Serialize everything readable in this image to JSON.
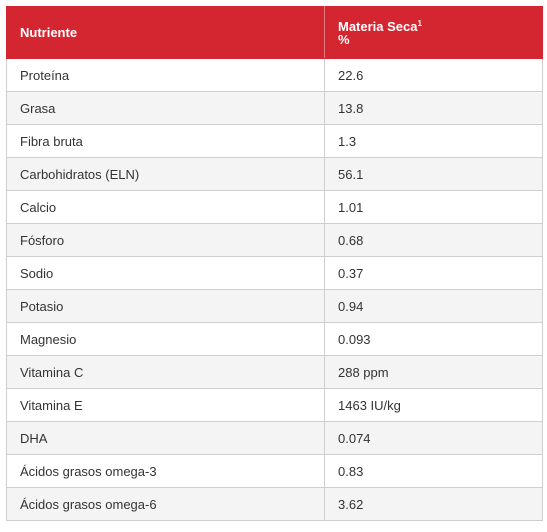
{
  "table": {
    "headers": {
      "nutrient": "Nutriente",
      "dry_matter": "Materia Seca",
      "dry_matter_sup": "1",
      "dry_matter_unit": "%"
    },
    "rows": [
      {
        "nutrient": "Proteína",
        "value": "22.6"
      },
      {
        "nutrient": "Grasa",
        "value": "13.8"
      },
      {
        "nutrient": "Fibra bruta",
        "value": "1.3"
      },
      {
        "nutrient": "Carbohidratos (ELN)",
        "value": "56.1"
      },
      {
        "nutrient": "Calcio",
        "value": "1.01"
      },
      {
        "nutrient": "Fósforo",
        "value": "0.68"
      },
      {
        "nutrient": "Sodio",
        "value": "0.37"
      },
      {
        "nutrient": "Potasio",
        "value": "0.94"
      },
      {
        "nutrient": "Magnesio",
        "value": "0.093"
      },
      {
        "nutrient": "Vitamina C",
        "value": "288 ppm"
      },
      {
        "nutrient": "Vitamina E",
        "value": "1463 IU/kg"
      },
      {
        "nutrient": "DHA",
        "value": "0.074"
      },
      {
        "nutrient": "Ácidos grasos omega-3",
        "value": "0.83"
      },
      {
        "nutrient": "Ácidos grasos omega-6",
        "value": "3.62"
      }
    ]
  },
  "colors": {
    "header_bg": "#d42630",
    "header_text": "#ffffff",
    "stripe": "#f4f4f4",
    "border": "#cfcfcf"
  }
}
